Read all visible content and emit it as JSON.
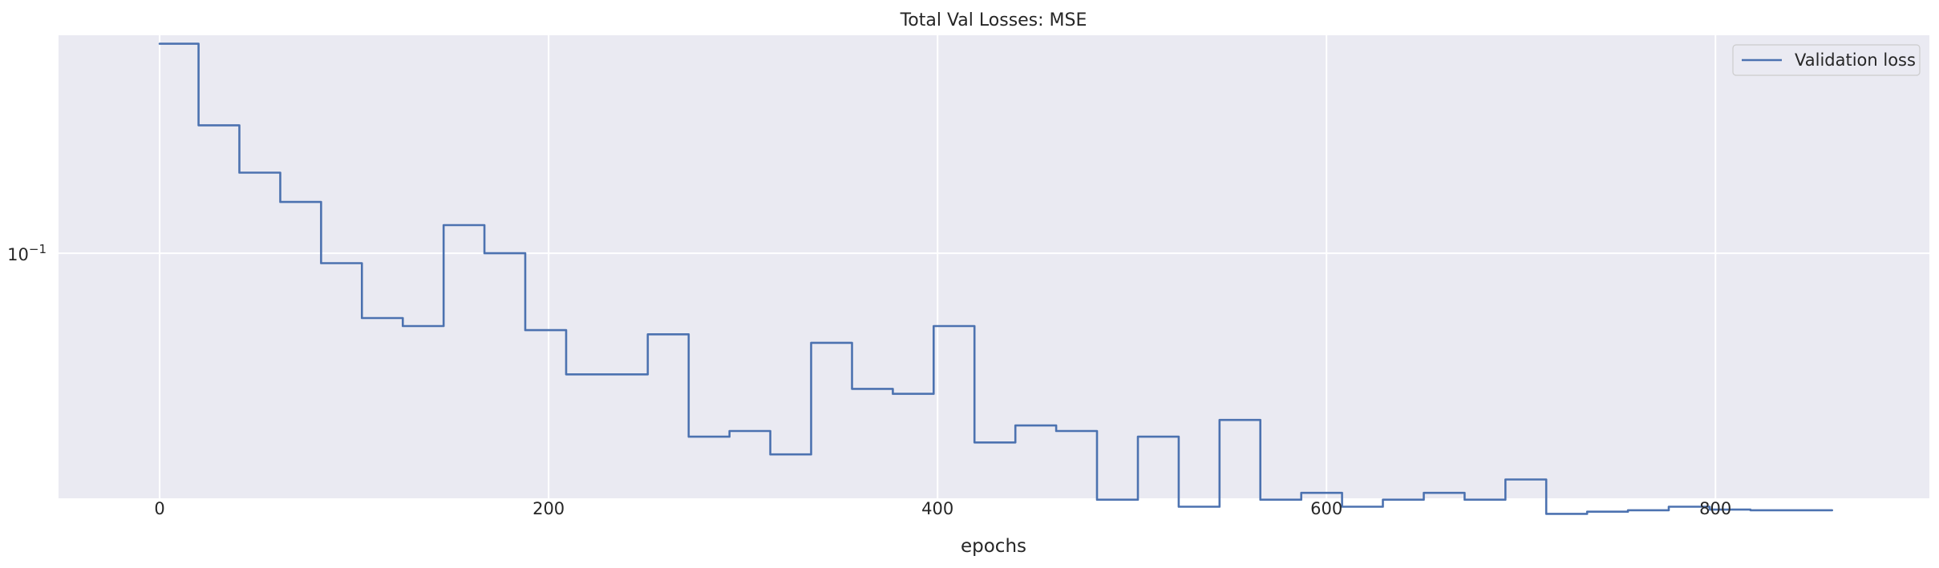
{
  "chart_data": {
    "type": "line",
    "title": "Total Val Losses:  MSE",
    "xlabel": "epochs",
    "ylabel": "",
    "y_scale": "log",
    "xlim": [
      -52,
      910
    ],
    "ylim": [
      0.0472,
      0.195
    ],
    "x_ticks": [
      0,
      200,
      400,
      600,
      800
    ],
    "y_ticks": [
      {
        "value": 0.1,
        "label": "10",
        "exponent": "−1"
      }
    ],
    "grid": true,
    "legend": {
      "position": "top-right"
    },
    "series": [
      {
        "name": "Validation loss",
        "color": "#4c72b0",
        "x": [
          0,
          20,
          20,
          41,
          41,
          62,
          62,
          83,
          83,
          104,
          104,
          125,
          125,
          146,
          146,
          167,
          167,
          188,
          188,
          209,
          209,
          230,
          230,
          251,
          251,
          272,
          272,
          293,
          293,
          314,
          314,
          335,
          335,
          356,
          356,
          377,
          377,
          398,
          398,
          419,
          419,
          440,
          440,
          461,
          461,
          482,
          482,
          503,
          503,
          524,
          524,
          545,
          545,
          566,
          566,
          587,
          587,
          608,
          608,
          629,
          629,
          650,
          650,
          671,
          671,
          692,
          692,
          713,
          713,
          734,
          734,
          755,
          755,
          776,
          776,
          797,
          797,
          818,
          818,
          860
        ],
        "y": [
          0.19,
          0.19,
          0.148,
          0.148,
          0.128,
          0.128,
          0.117,
          0.117,
          0.097,
          0.097,
          0.082,
          0.082,
          0.08,
          0.08,
          0.109,
          0.109,
          0.1,
          0.1,
          0.079,
          0.079,
          0.069,
          0.069,
          0.069,
          0.069,
          0.078,
          0.078,
          0.057,
          0.057,
          0.058,
          0.058,
          0.054,
          0.054,
          0.076,
          0.076,
          0.066,
          0.066,
          0.065,
          0.065,
          0.08,
          0.08,
          0.056,
          0.056,
          0.059,
          0.059,
          0.058,
          0.058,
          0.047,
          0.047,
          0.057,
          0.057,
          0.046,
          0.046,
          0.06,
          0.06,
          0.047,
          0.047,
          0.048,
          0.048,
          0.046,
          0.046,
          0.047,
          0.047,
          0.048,
          0.048,
          0.047,
          0.047,
          0.05,
          0.05,
          0.045,
          0.045,
          0.0453,
          0.0453,
          0.0455,
          0.0455,
          0.046,
          0.046,
          0.0456,
          0.0456,
          0.0455,
          0.0455
        ]
      }
    ]
  }
}
